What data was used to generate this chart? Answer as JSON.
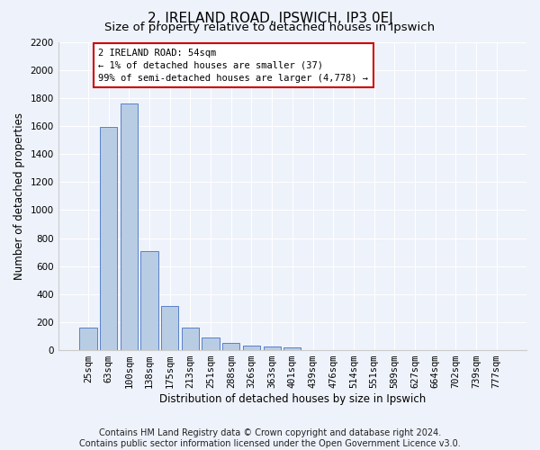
{
  "title": "2, IRELAND ROAD, IPSWICH, IP3 0EJ",
  "subtitle": "Size of property relative to detached houses in Ipswich",
  "xlabel": "Distribution of detached houses by size in Ipswich",
  "ylabel": "Number of detached properties",
  "categories": [
    "25sqm",
    "63sqm",
    "100sqm",
    "138sqm",
    "175sqm",
    "213sqm",
    "251sqm",
    "288sqm",
    "326sqm",
    "363sqm",
    "401sqm",
    "439sqm",
    "476sqm",
    "514sqm",
    "551sqm",
    "589sqm",
    "627sqm",
    "664sqm",
    "702sqm",
    "739sqm",
    "777sqm"
  ],
  "values": [
    160,
    1590,
    1760,
    710,
    315,
    160,
    90,
    55,
    35,
    25,
    20,
    0,
    0,
    0,
    0,
    0,
    0,
    0,
    0,
    0,
    0
  ],
  "bar_color": "#b8cce4",
  "bar_edge_color": "#4472c4",
  "annotation_text": "2 IRELAND ROAD: 54sqm\n← 1% of detached houses are smaller (37)\n99% of semi-detached houses are larger (4,778) →",
  "annotation_box_color": "#ffffff",
  "annotation_box_edge_color": "#cc0000",
  "ylim": [
    0,
    2200
  ],
  "yticks": [
    0,
    200,
    400,
    600,
    800,
    1000,
    1200,
    1400,
    1600,
    1800,
    2000,
    2200
  ],
  "background_color": "#eef2fb",
  "plot_background": "#eef2fb",
  "grid_color": "#ffffff",
  "footer_line1": "Contains HM Land Registry data © Crown copyright and database right 2024.",
  "footer_line2": "Contains public sector information licensed under the Open Government Licence v3.0.",
  "title_fontsize": 11,
  "subtitle_fontsize": 9.5,
  "label_fontsize": 8.5,
  "tick_fontsize": 7.5,
  "footer_fontsize": 7,
  "annotation_fontsize": 7.5
}
